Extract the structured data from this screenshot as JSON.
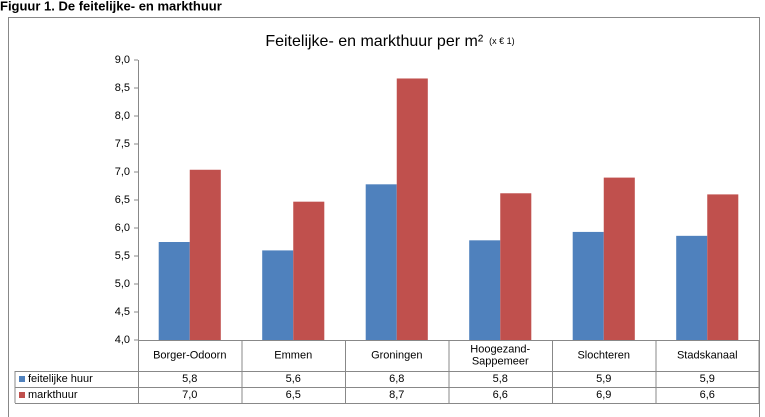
{
  "heading": "Figuur 1. De feitelijke- en markthuur",
  "chart_data": {
    "type": "bar",
    "title": "Feitelijke- en markthuur per m²",
    "subtitle": "(x € 1)",
    "categories": [
      "Borger-Odoorn",
      "Emmen",
      "Groningen",
      "Hoogezand-Sappemeer",
      "Slochteren",
      "Stadskanaal"
    ],
    "series": [
      {
        "name": "feitelijke huur",
        "color": "#4f81bd",
        "values": [
          5.75,
          5.6,
          6.78,
          5.78,
          5.93,
          5.86
        ],
        "value_labels": [
          "5,8",
          "5,6",
          "6,8",
          "5,8",
          "5,9",
          "5,9"
        ]
      },
      {
        "name": "markthuur",
        "color": "#c0504d",
        "values": [
          7.04,
          6.47,
          8.67,
          6.62,
          6.9,
          6.6
        ],
        "value_labels": [
          "7,0",
          "6,5",
          "8,7",
          "6,6",
          "6,9",
          "6,6"
        ]
      }
    ],
    "ylim": [
      4,
      9
    ],
    "yticks": [
      {
        "value": 4,
        "label": "4,0"
      },
      {
        "value": 4.5,
        "label": "4,5"
      },
      {
        "value": 5,
        "label": "5,0"
      },
      {
        "value": 5.5,
        "label": "5,5"
      },
      {
        "value": 6,
        "label": "6,0"
      },
      {
        "value": 6.5,
        "label": "6,5"
      },
      {
        "value": 7,
        "label": "7,0"
      },
      {
        "value": 7.5,
        "label": "7,5"
      },
      {
        "value": 8,
        "label": "8,0"
      },
      {
        "value": 8.5,
        "label": "8,5"
      },
      {
        "value": 9,
        "label": "9,0"
      }
    ],
    "grid": false
  }
}
